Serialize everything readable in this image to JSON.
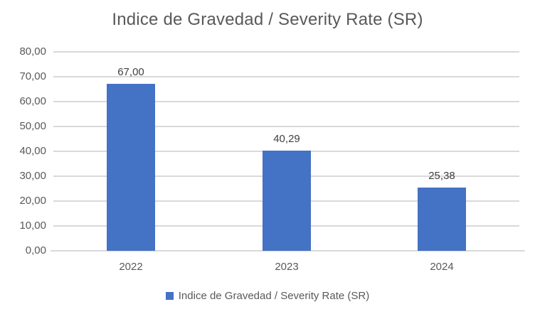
{
  "colors": {
    "bar": "#4472C4",
    "gridline": "#D9D9D9",
    "axis_text": "#595959",
    "title_text": "#595959",
    "data_label_text": "#404040",
    "background": "#FFFFFF"
  },
  "legend": {
    "label": "Indice de Gravedad / Severity Rate (SR)",
    "swatch_color": "#4472C4"
  },
  "chart_data": {
    "type": "bar",
    "title": "Indice de Gravedad / Severity Rate (SR)",
    "categories": [
      "2022",
      "2023",
      "2024"
    ],
    "values": [
      67.0,
      40.29,
      25.38
    ],
    "data_labels": [
      "67,00",
      "40,29",
      "25,38"
    ],
    "series_name": "Indice de Gravedad / Severity Rate (SR)",
    "xlabel": "",
    "ylabel": "",
    "ylim": [
      0,
      80
    ],
    "ytick_interval": 10,
    "ytick_labels": [
      "0,00",
      "10,00",
      "20,00",
      "30,00",
      "40,00",
      "50,00",
      "60,00",
      "70,00",
      "80,00"
    ],
    "grid": true,
    "legend_position": "bottom"
  }
}
